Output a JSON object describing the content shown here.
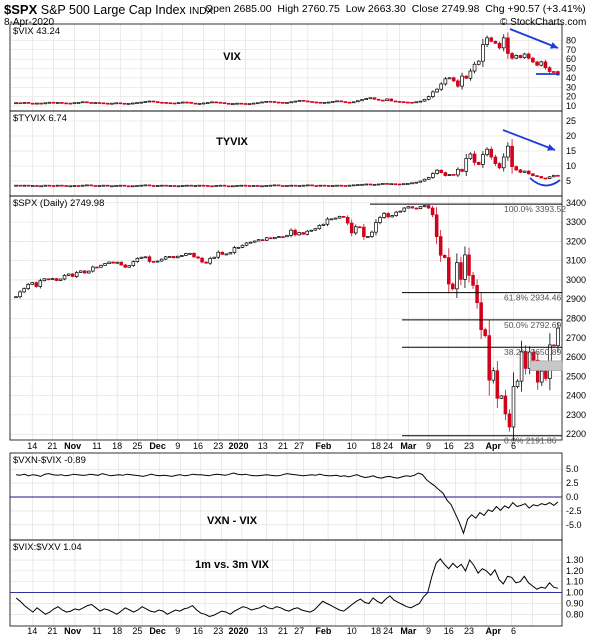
{
  "header": {
    "symbol": "$SPX",
    "name": "S&P 500 Large Cap Index",
    "exchange": "INDX",
    "date": "8-Apr-2020",
    "open": "Open 2685.00",
    "high": "High 2760.75",
    "low": "Low 2663.30",
    "close": "Close 2749.98",
    "chg": "Chg +90.57 (+3.41%)",
    "credit": "© StockCharts.com"
  },
  "chart_data": [
    {
      "id": "vix",
      "type": "candlestick",
      "legend": "$VIX 43.24",
      "title": "VIX",
      "ylim": [
        10,
        90
      ],
      "ticks": [
        "80",
        "70",
        "60",
        "50",
        "40",
        "30",
        "20",
        "10"
      ],
      "tick_values": [
        80,
        70,
        60,
        50,
        40,
        30,
        20,
        10
      ],
      "values": [
        13.5,
        13.2,
        13.8,
        13.0,
        12.9,
        13.1,
        12.8,
        13.4,
        14.0,
        13.5,
        13.8,
        13.3,
        13.1,
        12.8,
        13.5,
        13.9,
        14.5,
        13.8,
        13.2,
        13.7,
        13.4,
        13.0,
        12.7,
        13.0,
        13.4,
        12.9,
        12.5,
        12.8,
        13.2,
        13.6,
        14.1,
        14.8,
        15.3,
        14.6,
        14.0,
        13.8,
        13.5,
        13.2,
        12.9,
        13.6,
        14.2,
        13.9,
        13.1,
        12.6,
        12.8,
        13.2,
        13.7,
        14.4,
        14.0,
        13.6,
        12.9,
        12.4,
        12.6,
        13.0,
        12.7,
        12.2,
        12.5,
        13.1,
        13.5,
        14.3,
        15.0,
        14.8,
        14.2,
        13.9,
        13.4,
        13.8,
        14.5,
        15.2,
        16.0,
        15.4,
        14.8,
        14.3,
        14.0,
        13.6,
        13.9,
        14.2,
        14.9,
        15.5,
        14.7,
        14.1,
        13.9,
        14.5,
        15.6,
        16.8,
        18.0,
        18.8,
        17.2,
        16.3,
        15.8,
        17.5,
        15.4,
        14.9,
        14.6,
        14.2,
        14.0,
        13.8,
        14.5,
        15.2,
        17.1,
        20.0,
        25.0,
        27.9,
        33.5,
        39.0,
        40.1,
        36.8,
        31.2,
        41.9,
        39.6,
        47.3,
        54.5,
        57.8,
        75.5,
        82.7,
        79.0,
        76.9,
        72.0,
        82.7,
        66.0,
        61.0,
        63.9,
        61.6,
        65.5,
        61.0,
        57.0,
        53.5,
        57.1,
        50.9,
        46.8,
        46.7,
        43.2
      ]
    },
    {
      "id": "tyvix",
      "type": "candlestick",
      "legend": "$TYVIX 6.74",
      "title": "TYVIX",
      "ylim": [
        1,
        27
      ],
      "ticks": [
        "25",
        "20",
        "15",
        "10",
        "5"
      ],
      "tick_values": [
        25,
        20,
        15,
        10,
        5
      ],
      "values": [
        3.6,
        3.5,
        3.6,
        3.4,
        3.5,
        3.3,
        3.4,
        3.6,
        3.5,
        3.4,
        3.6,
        3.5,
        3.3,
        3.4,
        3.5,
        3.4,
        3.6,
        3.7,
        3.5,
        3.4,
        3.5,
        3.6,
        3.3,
        3.4,
        3.5,
        3.6,
        3.4,
        3.3,
        3.4,
        3.5,
        3.6,
        3.7,
        3.5,
        3.4,
        3.5,
        3.6,
        3.4,
        3.5,
        3.3,
        3.4,
        3.5,
        3.6,
        3.4,
        3.5,
        3.6,
        3.5,
        3.4,
        3.3,
        3.5,
        3.6,
        3.4,
        3.3,
        3.4,
        3.5,
        3.6,
        3.5,
        3.4,
        3.5,
        3.3,
        3.4,
        3.5,
        3.6,
        3.7,
        3.5,
        3.4,
        3.5,
        3.6,
        3.4,
        3.5,
        3.6,
        3.7,
        3.5,
        3.4,
        3.6,
        3.5,
        3.4,
        3.5,
        3.6,
        3.5,
        3.4,
        3.6,
        3.7,
        3.8,
        3.9,
        4.0,
        3.8,
        3.9,
        4.0,
        4.2,
        4.0,
        4.1,
        4.0,
        3.9,
        4.1,
        4.2,
        4.4,
        4.6,
        5.0,
        5.6,
        6.2,
        7.5,
        8.6,
        7.8,
        6.8,
        7.2,
        7.0,
        8.9,
        8.2,
        12.5,
        14.0,
        11.2,
        10.5,
        13.8,
        15.6,
        13.0,
        10.8,
        9.4,
        13.0,
        16.6,
        9.8,
        8.7,
        7.9,
        8.3,
        7.4,
        6.8,
        6.5,
        6.0,
        5.8,
        6.4,
        6.9,
        6.7
      ]
    },
    {
      "id": "spx",
      "type": "candlestick",
      "legend": "$SPX (Daily) 2749.98",
      "ylim": [
        2180,
        3420
      ],
      "ticks": [
        "3400",
        "3300",
        "3200",
        "3100",
        "3000",
        "2900",
        "2800",
        "2700",
        "2600",
        "2500",
        "2400",
        "2300",
        "2200"
      ],
      "tick_values": [
        3400,
        3300,
        3200,
        3100,
        3000,
        2900,
        2800,
        2700,
        2600,
        2500,
        2400,
        2300,
        2200
      ],
      "values": [
        2913,
        2938,
        2955,
        2977,
        2986,
        2966,
        2996,
        3006,
        3003,
        3007,
        2997,
        3005,
        3024,
        3031,
        3018,
        3039,
        3047,
        3036,
        3046,
        3067,
        3066,
        3076,
        3085,
        3093,
        3087,
        3092,
        3078,
        3066,
        3075,
        3095,
        3112,
        3118,
        3120,
        3096,
        3094,
        3098,
        3108,
        3120,
        3122,
        3115,
        3123,
        3127,
        3137,
        3138,
        3120,
        3113,
        3093,
        3087,
        3112,
        3118,
        3144,
        3133,
        3135,
        3142,
        3168,
        3169,
        3180,
        3192,
        3196,
        3202,
        3209,
        3206,
        3219,
        3214,
        3221,
        3225,
        3224,
        3231,
        3258,
        3234,
        3246,
        3237,
        3253,
        3258,
        3266,
        3283,
        3289,
        3316,
        3317,
        3321,
        3330,
        3325,
        3295,
        3244,
        3276,
        3274,
        3225,
        3226,
        3248,
        3298,
        3324,
        3345,
        3327,
        3334,
        3352,
        3357,
        3373,
        3380,
        3373,
        3370,
        3380,
        3386,
        3373,
        3338,
        3225,
        3128,
        3116,
        2979,
        2954,
        3090,
        3003,
        3130,
        3024,
        2972,
        2882,
        2742,
        2711,
        2480,
        2529,
        2386,
        2398,
        2305,
        2237,
        2447,
        2475,
        2630,
        2541,
        2626,
        2584,
        2470,
        2527,
        2489,
        2663,
        2659,
        2750
      ]
    },
    {
      "id": "fib",
      "type": "annotation",
      "levels": [
        {
          "label": "100.0% 3393.52",
          "value": 3393.52
        },
        {
          "label": "61.8% 2934.46",
          "value": 2934.46
        },
        {
          "label": "50.0% 2792.69",
          "value": 2792.69
        },
        {
          "label": "38.2% 2650.89",
          "value": 2650.89
        },
        {
          "label": "0.0% 2191.86",
          "value": 2191.86
        }
      ]
    },
    {
      "id": "ratio1",
      "type": "line",
      "legend": "$VXN-$VIX -0.89",
      "title": "VXN - VIX",
      "ylim": [
        -7,
        7
      ],
      "ticks": [
        "5.0",
        "2.5",
        "0.0",
        "-2.5",
        "-5.0"
      ],
      "tick_values": [
        5,
        2.5,
        0,
        -2.5,
        -5
      ],
      "zero_line": 0,
      "values": [
        4.0,
        3.9,
        4.1,
        3.8,
        4.0,
        3.9,
        3.7,
        4.1,
        4.2,
        4.0,
        3.9,
        4.0,
        3.8,
        3.9,
        4.1,
        4.0,
        3.9,
        3.9,
        4.1,
        4.0,
        3.9,
        4.2,
        4.0,
        3.8,
        3.9,
        4.0,
        3.9,
        4.1,
        4.0,
        3.9,
        3.8,
        3.7,
        3.9,
        4.1,
        3.9,
        3.8,
        3.9,
        3.8,
        3.7,
        3.9,
        4.0,
        3.8,
        3.9,
        4.1,
        4.0,
        4.0,
        3.9,
        3.8,
        4.0,
        4.1,
        4.0,
        3.9,
        4.1,
        4.3,
        4.1,
        4.0,
        4.1,
        3.9,
        3.8,
        3.8,
        3.9,
        4.0,
        3.9,
        3.8,
        3.8,
        4.0,
        4.2,
        4.1,
        4.0,
        3.9,
        3.8,
        3.9,
        4.0,
        3.9,
        4.1,
        3.9,
        3.8,
        3.8,
        3.9,
        3.7,
        3.8,
        3.6,
        3.8,
        4.0,
        3.7,
        3.5,
        3.6,
        3.8,
        3.5,
        3.4,
        3.6,
        3.7,
        3.5,
        3.4,
        3.6,
        3.8,
        3.7,
        3.9,
        4.3,
        4.0,
        3.1,
        2.5,
        2.0,
        1.3,
        0.7,
        -0.6,
        -1.4,
        -3.0,
        -4.6,
        -6.5,
        -4.0,
        -3.2,
        -3.8,
        -2.8,
        -3.3,
        -2.3,
        -2.6,
        -1.7,
        -2.4,
        -1.6,
        -2.0,
        -1.0,
        -1.7,
        -1.5,
        -1.2,
        -2.0,
        -1.4,
        -1.6,
        -1.2,
        -1.4,
        -1.0,
        -1.5,
        -0.9
      ]
    },
    {
      "id": "ratio2",
      "type": "line",
      "legend": "$VIX:$VXV 1.04",
      "title": "1m vs. 3m VIX",
      "ylim": [
        0.72,
        1.42
      ],
      "ticks": [
        "1.30",
        "1.20",
        "1.10",
        "1.00",
        "0.90",
        "0.80"
      ],
      "tick_values": [
        1.3,
        1.2,
        1.1,
        1.0,
        0.9,
        0.8
      ],
      "zero_line": 1.0,
      "values": [
        0.95,
        0.92,
        0.88,
        0.85,
        0.82,
        0.86,
        0.83,
        0.8,
        0.82,
        0.85,
        0.87,
        0.84,
        0.82,
        0.83,
        0.85,
        0.84,
        0.86,
        0.88,
        0.89,
        0.86,
        0.83,
        0.85,
        0.84,
        0.82,
        0.8,
        0.83,
        0.86,
        0.84,
        0.82,
        0.84,
        0.87,
        0.85,
        0.83,
        0.82,
        0.84,
        0.83,
        0.8,
        0.82,
        0.84,
        0.83,
        0.85,
        0.86,
        0.88,
        0.84,
        0.81,
        0.8,
        0.78,
        0.79,
        0.81,
        0.83,
        0.82,
        0.8,
        0.83,
        0.85,
        0.87,
        0.86,
        0.84,
        0.85,
        0.86,
        0.88,
        0.86,
        0.85,
        0.87,
        0.86,
        0.84,
        0.83,
        0.85,
        0.86,
        0.84,
        0.83,
        0.82,
        0.84,
        0.88,
        0.92,
        0.9,
        0.88,
        0.86,
        0.84,
        0.83,
        0.86,
        0.89,
        0.92,
        0.94,
        0.91,
        0.9,
        0.95,
        0.92,
        0.9,
        0.94,
        0.97,
        0.93,
        0.91,
        0.89,
        0.87,
        0.86,
        0.88,
        0.9,
        0.96,
        1.0,
        1.15,
        1.27,
        1.31,
        1.26,
        1.22,
        1.27,
        1.23,
        1.26,
        1.2,
        1.3,
        1.25,
        1.18,
        1.22,
        1.2,
        1.16,
        1.21,
        1.12,
        1.08,
        1.15,
        1.14,
        1.09,
        1.1,
        1.15,
        1.09,
        1.06,
        1.03,
        1.05,
        1.04,
        1.09,
        1.05,
        1.04
      ]
    }
  ],
  "x_axis": {
    "labels": [
      "14",
      "21",
      "Nov",
      "11",
      "18",
      "25",
      "Dec",
      "9",
      "16",
      "23",
      "2020",
      "13",
      "21",
      "27",
      "Feb",
      "10",
      "18",
      "24",
      "Mar",
      "9",
      "16",
      "23",
      "Apr",
      "6"
    ],
    "month_labels": [
      "Nov",
      "Dec",
      "2020",
      "Feb",
      "Mar",
      "Apr"
    ]
  },
  "colors": {
    "up": "#000000",
    "down": "#d0021b",
    "annotation": "#1e3ad8",
    "fib_band": "#c8c8c8",
    "grid": "#dddddd"
  }
}
